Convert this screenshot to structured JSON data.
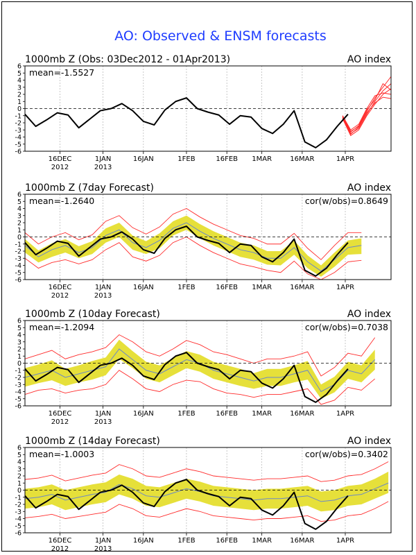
{
  "page": {
    "title": "AO: Observed & ENSM forecasts",
    "title_color": "#1e3cff"
  },
  "axis": {
    "y_ticks": [
      "6",
      "5",
      "4",
      "3",
      "2",
      "1",
      "0",
      "-1",
      "-2",
      "-3",
      "-4",
      "-5",
      "-6"
    ],
    "x_ticks": [
      {
        "line1": "16DEC",
        "line2": "2012"
      },
      {
        "line1": "1JAN",
        "line2": "2013"
      },
      {
        "line1": "16JAN",
        "line2": ""
      },
      {
        "line1": "1FEB",
        "line2": ""
      },
      {
        "line1": "16FEB",
        "line2": ""
      },
      {
        "line1": "1MAR",
        "line2": ""
      },
      {
        "line1": "16MAR",
        "line2": ""
      },
      {
        "line1": "1APR",
        "line2": ""
      }
    ]
  },
  "colors": {
    "observed": "#000000",
    "member": "#ff2a2a",
    "band": "#e6e03a",
    "ens_mean": "#6a88c8",
    "zero_line": "#000000",
    "grid": "#b0b0b0"
  },
  "panels": [
    {
      "title": "1000mb Z (Obs: 03Dec2012 - 01Apr2013)",
      "right_label": "AO index",
      "mean": "mean=-1.5527",
      "cor": ""
    },
    {
      "title": "1000mb Z (7day Forecast)",
      "right_label": "AO index",
      "mean": "mean=-1.2640",
      "cor": "cor(w/obs)=0.8649"
    },
    {
      "title": "1000mb Z (10day Forecast)",
      "right_label": "AO index",
      "mean": "mean=-1.2094",
      "cor": "cor(w/obs)=0.7038"
    },
    {
      "title": "1000mb Z (14day Forecast)",
      "right_label": "AO index",
      "mean": "mean=-1.0003",
      "cor": "cor(w/obs)=0.3402"
    }
  ],
  "chart_data": [
    {
      "type": "line",
      "title": "1000mb Z (Obs: 03Dec2012 - 01Apr2013)",
      "ylim": [
        -6,
        6
      ],
      "x_start_day": 0,
      "x_end_day": 136,
      "observed": {
        "days": [
          0,
          4,
          8,
          12,
          16,
          20,
          24,
          28,
          32,
          36,
          40,
          44,
          48,
          52,
          56,
          60,
          64,
          68,
          72,
          76,
          80,
          84,
          88,
          92,
          96,
          100,
          104,
          108,
          112,
          116,
          120
        ],
        "values": [
          -0.8,
          -2.5,
          -1.6,
          -0.6,
          -0.9,
          -2.7,
          -1.5,
          -0.3,
          0.0,
          0.7,
          -0.3,
          -1.8,
          -2.3,
          -0.2,
          1.0,
          1.5,
          0.0,
          -0.5,
          -0.9,
          -2.2,
          -1.0,
          -1.2,
          -2.8,
          -3.5,
          -2.2,
          -0.3,
          -4.7,
          -5.5,
          -4.4,
          -2.5,
          -0.8
        ]
      },
      "members_start_day": 118,
      "members": [
        {
          "days": [
            118,
            121,
            124,
            127,
            130,
            133,
            136
          ],
          "values": [
            -1.0,
            -3.2,
            -2.5,
            -0.4,
            1.5,
            3.0,
            4.5
          ]
        },
        {
          "days": [
            118,
            121,
            124,
            127,
            130,
            133,
            136
          ],
          "values": [
            -1.2,
            -3.5,
            -2.8,
            -0.8,
            1.0,
            2.5,
            3.5
          ]
        },
        {
          "days": [
            118,
            121,
            124,
            127,
            130,
            133,
            136
          ],
          "values": [
            -1.4,
            -3.8,
            -3.0,
            -1.0,
            0.6,
            2.0,
            2.8
          ]
        },
        {
          "days": [
            118,
            121,
            124,
            127,
            130,
            133,
            136
          ],
          "values": [
            -1.0,
            -3.0,
            -2.2,
            0.0,
            1.8,
            2.2,
            2.0
          ]
        },
        {
          "days": [
            118,
            121,
            124,
            127,
            130,
            133,
            136
          ],
          "values": [
            -1.3,
            -3.6,
            -2.6,
            -0.6,
            0.8,
            1.6,
            1.4
          ]
        },
        {
          "days": [
            118,
            121,
            124,
            127,
            130,
            133,
            136
          ],
          "values": [
            -1.1,
            -3.3,
            -2.4,
            -0.2,
            1.2,
            3.5,
            2.6
          ]
        }
      ]
    },
    {
      "type": "area",
      "title": "1000mb Z (7day Forecast)",
      "ylim": [
        -6,
        6
      ],
      "observed": {
        "days": [
          0,
          4,
          8,
          12,
          16,
          20,
          24,
          28,
          32,
          36,
          40,
          44,
          48,
          52,
          56,
          60,
          64,
          68,
          72,
          76,
          80,
          84,
          88,
          92,
          96,
          100,
          104,
          108,
          112,
          116,
          120
        ],
        "values": [
          -0.8,
          -2.5,
          -1.6,
          -0.6,
          -0.9,
          -2.7,
          -1.5,
          -0.3,
          0.0,
          0.7,
          -0.3,
          -1.8,
          -2.3,
          -0.2,
          1.0,
          1.5,
          0.0,
          -0.5,
          -0.9,
          -2.2,
          -1.0,
          -1.2,
          -2.8,
          -3.5,
          -2.2,
          -0.3,
          -4.7,
          -5.5,
          -4.4,
          -2.5,
          -0.8
        ]
      },
      "forecast": {
        "days": [
          0,
          5,
          10,
          15,
          20,
          25,
          30,
          35,
          40,
          45,
          50,
          55,
          60,
          65,
          70,
          75,
          80,
          85,
          90,
          95,
          100,
          105,
          110,
          115,
          120,
          125
        ],
        "mean": [
          -1.2,
          -2.8,
          -1.8,
          -1.2,
          -2.2,
          -1.5,
          0.2,
          1.0,
          -0.8,
          -1.5,
          -0.5,
          1.2,
          2.0,
          0.8,
          -0.2,
          -1.0,
          -1.8,
          -2.2,
          -3.0,
          -3.0,
          -1.5,
          -3.5,
          -4.8,
          -3.2,
          -1.5,
          -1.2
        ],
        "band_low": [
          -2.2,
          -3.6,
          -2.8,
          -2.2,
          -3.0,
          -2.4,
          -0.8,
          0.0,
          -1.8,
          -2.4,
          -1.6,
          0.2,
          1.0,
          -0.2,
          -1.2,
          -2.0,
          -2.8,
          -3.2,
          -3.9,
          -4.0,
          -2.5,
          -4.4,
          -5.6,
          -4.2,
          -2.5,
          -2.4
        ],
        "band_high": [
          -0.3,
          -1.9,
          -0.9,
          -0.3,
          -1.3,
          -0.6,
          1.2,
          2.0,
          0.2,
          -0.6,
          0.5,
          2.2,
          3.0,
          1.8,
          0.8,
          0.0,
          -0.8,
          -1.2,
          -2.0,
          -2.0,
          -0.5,
          -2.6,
          -4.0,
          -2.2,
          -0.5,
          -0.2
        ],
        "low": [
          -3.0,
          -4.4,
          -3.6,
          -3.2,
          -3.8,
          -3.2,
          -1.8,
          -0.8,
          -2.8,
          -3.4,
          -2.6,
          -0.8,
          0.0,
          -1.2,
          -2.2,
          -3.0,
          -3.8,
          -4.2,
          -4.7,
          -5.0,
          -3.4,
          -5.2,
          -6.0,
          -5.0,
          -3.5,
          -3.3
        ],
        "high": [
          0.6,
          -1.0,
          0.0,
          0.6,
          -0.4,
          0.3,
          2.2,
          3.0,
          1.3,
          0.4,
          1.4,
          3.2,
          4.0,
          2.8,
          1.8,
          1.0,
          0.2,
          -0.2,
          -1.0,
          -1.0,
          0.5,
          -1.6,
          -3.2,
          -1.2,
          0.6,
          0.6
        ]
      }
    },
    {
      "type": "area",
      "title": "1000mb Z (10day Forecast)",
      "ylim": [
        -6,
        6
      ],
      "observed": {
        "days": [
          0,
          4,
          8,
          12,
          16,
          20,
          24,
          28,
          32,
          36,
          40,
          44,
          48,
          52,
          56,
          60,
          64,
          68,
          72,
          76,
          80,
          84,
          88,
          92,
          96,
          100,
          104,
          108,
          112,
          116,
          120
        ],
        "values": [
          -0.8,
          -2.5,
          -1.6,
          -0.6,
          -0.9,
          -2.7,
          -1.5,
          -0.3,
          0.0,
          0.7,
          -0.3,
          -1.8,
          -2.3,
          -0.2,
          1.0,
          1.5,
          0.0,
          -0.5,
          -0.9,
          -2.2,
          -1.0,
          -1.2,
          -2.8,
          -3.5,
          -2.2,
          -0.3,
          -4.7,
          -5.5,
          -4.4,
          -2.5,
          -0.8
        ]
      },
      "forecast": {
        "days": [
          0,
          5,
          10,
          15,
          20,
          25,
          30,
          35,
          40,
          45,
          50,
          55,
          60,
          65,
          70,
          75,
          80,
          85,
          90,
          95,
          100,
          105,
          110,
          115,
          120,
          125,
          130
        ],
        "mean": [
          -2.0,
          -1.5,
          -1.0,
          -2.0,
          -1.5,
          -1.0,
          -0.5,
          2.0,
          0.5,
          -1.0,
          -1.5,
          -0.5,
          0.5,
          0.0,
          -1.0,
          -1.5,
          -2.0,
          -2.5,
          -2.0,
          -2.0,
          -1.5,
          -1.0,
          -4.0,
          -3.0,
          -1.0,
          -1.5,
          0.5
        ],
        "band_low": [
          -3.3,
          -2.8,
          -2.4,
          -3.2,
          -2.7,
          -2.3,
          -1.7,
          0.6,
          -0.7,
          -2.2,
          -2.7,
          -1.7,
          -0.7,
          -1.2,
          -2.2,
          -2.7,
          -3.2,
          -3.6,
          -3.2,
          -3.2,
          -2.7,
          -2.3,
          -5.0,
          -4.1,
          -2.2,
          -2.7,
          -0.9
        ],
        "band_high": [
          -0.7,
          -0.2,
          0.4,
          -0.8,
          -0.3,
          0.3,
          0.8,
          3.3,
          1.7,
          0.2,
          -0.3,
          0.7,
          1.7,
          1.2,
          0.2,
          -0.3,
          -0.8,
          -1.4,
          -0.8,
          -0.8,
          -0.3,
          0.3,
          -3.0,
          -1.9,
          0.2,
          -0.3,
          1.9
        ],
        "low": [
          -4.4,
          -3.8,
          -3.6,
          -4.2,
          -3.8,
          -3.6,
          -3.0,
          -1.0,
          -2.2,
          -3.6,
          -4.0,
          -3.0,
          -2.4,
          -2.6,
          -3.6,
          -4.2,
          -4.4,
          -4.8,
          -4.4,
          -4.4,
          -4.0,
          -3.6,
          -5.8,
          -5.2,
          -3.4,
          -3.8,
          -2.2
        ],
        "high": [
          0.6,
          1.2,
          1.8,
          0.6,
          1.2,
          1.6,
          2.2,
          4.0,
          3.0,
          1.6,
          1.0,
          2.0,
          3.2,
          2.6,
          1.6,
          1.2,
          0.6,
          0.0,
          0.6,
          0.6,
          1.0,
          1.6,
          -1.8,
          -0.6,
          1.4,
          1.0,
          3.6
        ]
      }
    },
    {
      "type": "area",
      "title": "1000mb Z (14day Forecast)",
      "ylim": [
        -6,
        6
      ],
      "observed": {
        "days": [
          0,
          4,
          8,
          12,
          16,
          20,
          24,
          28,
          32,
          36,
          40,
          44,
          48,
          52,
          56,
          60,
          64,
          68,
          72,
          76,
          80,
          84,
          88,
          92,
          96,
          100,
          104,
          108,
          112,
          116,
          120
        ],
        "values": [
          -0.8,
          -2.5,
          -1.6,
          -0.6,
          -0.9,
          -2.7,
          -1.5,
          -0.3,
          0.0,
          0.7,
          -0.3,
          -1.8,
          -2.3,
          -0.2,
          1.0,
          1.5,
          0.0,
          -0.5,
          -0.9,
          -2.2,
          -1.0,
          -1.2,
          -2.8,
          -3.5,
          -2.2,
          -0.3,
          -4.7,
          -5.5,
          -4.4,
          -2.5,
          -0.8
        ]
      },
      "forecast": {
        "days": [
          0,
          5,
          10,
          15,
          20,
          25,
          30,
          35,
          40,
          45,
          50,
          55,
          60,
          65,
          70,
          75,
          80,
          85,
          90,
          95,
          100,
          105,
          110,
          115,
          120,
          125,
          130,
          135
        ],
        "mean": [
          -1.2,
          -1.0,
          -0.6,
          -1.4,
          -1.0,
          -0.6,
          -0.3,
          0.8,
          0.2,
          -0.8,
          -1.0,
          -0.4,
          0.2,
          -0.2,
          -0.8,
          -1.0,
          -1.2,
          -1.4,
          -1.2,
          -1.2,
          -1.0,
          -0.8,
          -1.6,
          -1.4,
          -0.8,
          -0.6,
          0.2,
          1.0
        ],
        "band_low": [
          -2.6,
          -2.4,
          -2.0,
          -2.8,
          -2.4,
          -2.0,
          -1.7,
          -0.6,
          -1.2,
          -2.2,
          -2.4,
          -1.8,
          -1.2,
          -1.6,
          -2.2,
          -2.4,
          -2.6,
          -2.8,
          -2.6,
          -2.6,
          -2.4,
          -2.2,
          -3.0,
          -2.8,
          -2.2,
          -2.0,
          -1.2,
          -0.4
        ],
        "band_high": [
          0.2,
          0.4,
          0.8,
          0.0,
          0.4,
          0.8,
          1.1,
          2.2,
          1.6,
          0.6,
          0.4,
          1.0,
          1.6,
          1.2,
          0.6,
          0.4,
          0.2,
          0.0,
          0.2,
          0.2,
          0.4,
          0.6,
          -0.2,
          0.0,
          0.6,
          0.8,
          1.6,
          2.6
        ],
        "low": [
          -3.9,
          -3.7,
          -3.4,
          -4.0,
          -3.7,
          -3.4,
          -3.1,
          -2.0,
          -2.6,
          -3.6,
          -3.8,
          -3.2,
          -2.6,
          -3.0,
          -3.6,
          -3.8,
          -4.0,
          -4.2,
          -4.0,
          -4.0,
          -3.8,
          -3.6,
          -4.4,
          -4.2,
          -3.6,
          -3.4,
          -2.6,
          -1.6
        ],
        "high": [
          1.5,
          1.7,
          2.1,
          1.3,
          1.7,
          2.1,
          2.4,
          3.6,
          3.0,
          2.0,
          1.8,
          2.4,
          3.0,
          2.6,
          2.0,
          1.8,
          1.6,
          1.4,
          1.6,
          1.6,
          1.8,
          2.0,
          1.2,
          1.4,
          2.0,
          2.2,
          3.0,
          4.0
        ]
      }
    }
  ]
}
